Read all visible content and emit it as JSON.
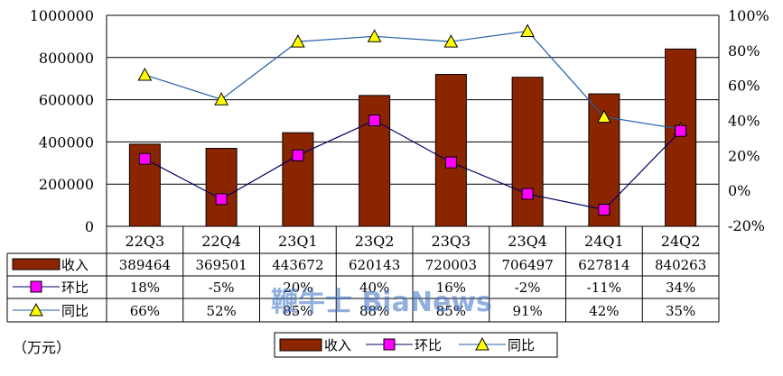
{
  "chart_data": {
    "type": "bar",
    "categories": [
      "22Q3",
      "22Q4",
      "23Q1",
      "23Q2",
      "23Q3",
      "23Q4",
      "24Q1",
      "24Q2"
    ],
    "series": [
      {
        "name": "收入",
        "type": "bar",
        "axis": "left",
        "values": [
          389464,
          369501,
          443672,
          620143,
          720003,
          706497,
          627814,
          840263
        ]
      },
      {
        "name": "环比",
        "type": "line",
        "axis": "right",
        "values": [
          18,
          -5,
          20,
          40,
          16,
          -2,
          -11,
          34
        ]
      },
      {
        "name": "同比",
        "type": "line",
        "axis": "right",
        "values": [
          66,
          52,
          85,
          88,
          85,
          91,
          42,
          35
        ]
      }
    ],
    "table": {
      "revenue": [
        "389464",
        "369501",
        "443672",
        "620143",
        "720003",
        "706497",
        "627814",
        "840263"
      ],
      "qoq": [
        "18%",
        "-5%",
        "20%",
        "40%",
        "16%",
        "-2%",
        "-11%",
        "34%"
      ],
      "yoy": [
        "66%",
        "52%",
        "85%",
        "88%",
        "85%",
        "91%",
        "42%",
        "35%"
      ]
    },
    "left_axis": {
      "ylim": [
        0,
        1000000
      ],
      "ticks": [
        "0",
        "200000",
        "400000",
        "600000",
        "800000",
        "1000000"
      ]
    },
    "right_axis": {
      "ylim": [
        -20,
        100
      ],
      "ticks": [
        "-20%",
        "0%",
        "20%",
        "40%",
        "60%",
        "80%",
        "100%"
      ]
    },
    "legend": [
      "收入",
      "环比",
      "同比"
    ],
    "unit": "（万元）",
    "watermark": "鞭牛士 BiaNews",
    "colors": {
      "bar": "#8b2500",
      "qoq_marker": "#ff00ff",
      "yoy_marker": "#ffff00",
      "qoq_line": "#000066",
      "yoy_line": "#1f5fa8"
    }
  }
}
